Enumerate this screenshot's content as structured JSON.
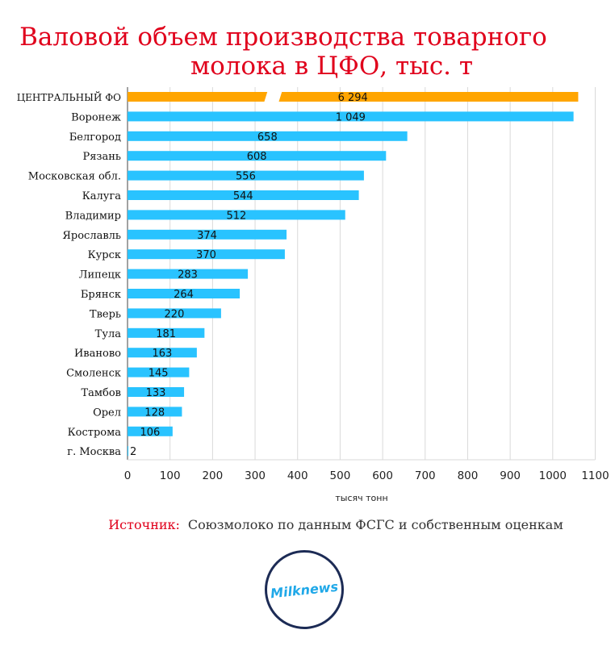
{
  "title": {
    "line1": "Валовой объем производства товарного",
    "line2": "молока в ЦФО, тыс. т"
  },
  "source": {
    "label": "Источник:",
    "text": "Союзмолоко по данным ФСГС и собственным оценкам"
  },
  "logo": "Milknews",
  "colors": {
    "title": "#e0001b",
    "bar": "#29c3ff",
    "highlight": "#ffa500",
    "logo": "#1fa8e8"
  },
  "chart_data": {
    "type": "bar",
    "orientation": "horizontal",
    "xlabel": "тысяч тонн",
    "xlim": [
      0,
      1100
    ],
    "xticks": [
      0,
      100,
      200,
      300,
      400,
      500,
      600,
      700,
      800,
      900,
      1000,
      1100
    ],
    "grid": true,
    "axis_break": "break in the ЦЕНТРАЛЬНЫЙ ФО bar",
    "categories": [
      "ЦЕНТРАЛЬНЫЙ ФО",
      "Воронеж",
      "Белгород",
      "Рязань",
      "Московская обл.",
      "Калуга",
      "Владимир",
      "Ярославль",
      "Курск",
      "Липецк",
      "Брянск",
      "Тверь",
      "Тула",
      "Иваново",
      "Смоленск",
      "Тамбов",
      "Орел",
      "Кострома",
      "г. Москва"
    ],
    "values": [
      6294,
      1049,
      658,
      608,
      556,
      544,
      512,
      374,
      370,
      283,
      264,
      220,
      181,
      163,
      145,
      133,
      128,
      106,
      2
    ],
    "value_labels": [
      "6 294",
      "1 049",
      "658",
      "608",
      "556",
      "544",
      "512",
      "374",
      "370",
      "283",
      "264",
      "220",
      "181",
      "163",
      "145",
      "133",
      "128",
      "106",
      "2"
    ],
    "highlight_index": 0
  }
}
